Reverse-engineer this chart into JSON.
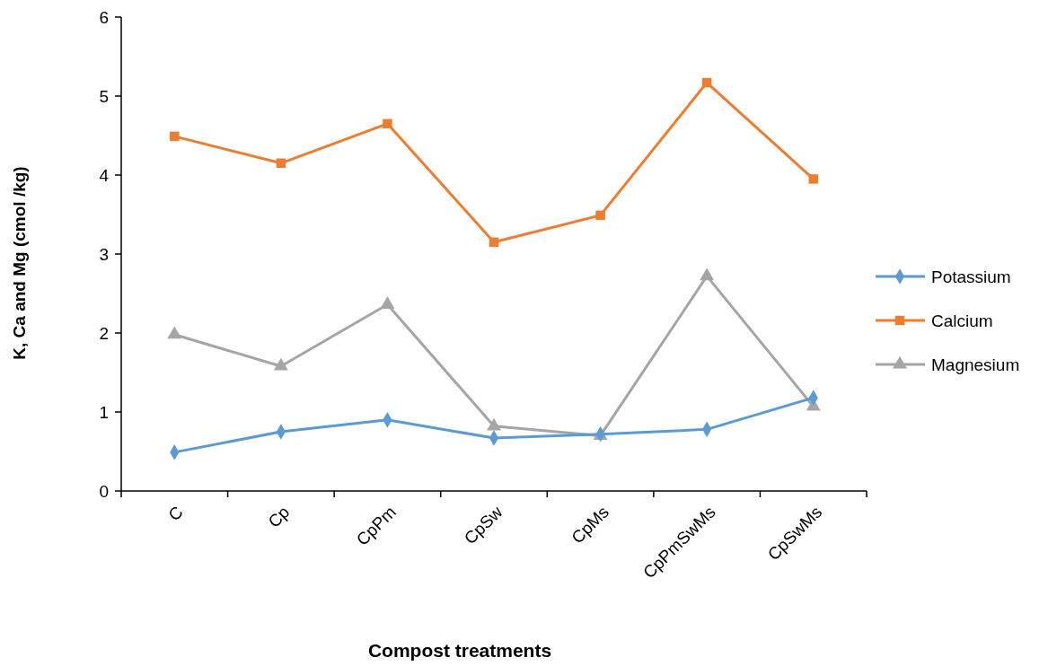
{
  "chart_data": {
    "type": "line",
    "xlabel": "Compost treatments",
    "ylabel": "K, Ca and Mg  (cmol /kg)",
    "categories": [
      "C",
      "Cp",
      "CpPm",
      "CpSw",
      "CpMs",
      "CpPmSwMs",
      "CpSwMs"
    ],
    "ylim": [
      0,
      6
    ],
    "yticks": [
      0,
      1,
      2,
      3,
      4,
      5,
      6
    ],
    "grid": false,
    "legend": "right",
    "series": [
      {
        "name": "Potassium",
        "color": "#5b9bd5",
        "marker": "diamond",
        "values": [
          0.49,
          0.75,
          0.9,
          0.67,
          0.72,
          0.78,
          1.18
        ]
      },
      {
        "name": "Calcium",
        "color": "#ed7d31",
        "marker": "square",
        "values": [
          4.49,
          4.15,
          4.65,
          3.15,
          3.49,
          5.17,
          3.95
        ]
      },
      {
        "name": "Magnesium",
        "color": "#a5a5a5",
        "marker": "triangle",
        "values": [
          1.98,
          1.58,
          2.36,
          0.82,
          0.7,
          2.72,
          1.07
        ]
      }
    ]
  }
}
